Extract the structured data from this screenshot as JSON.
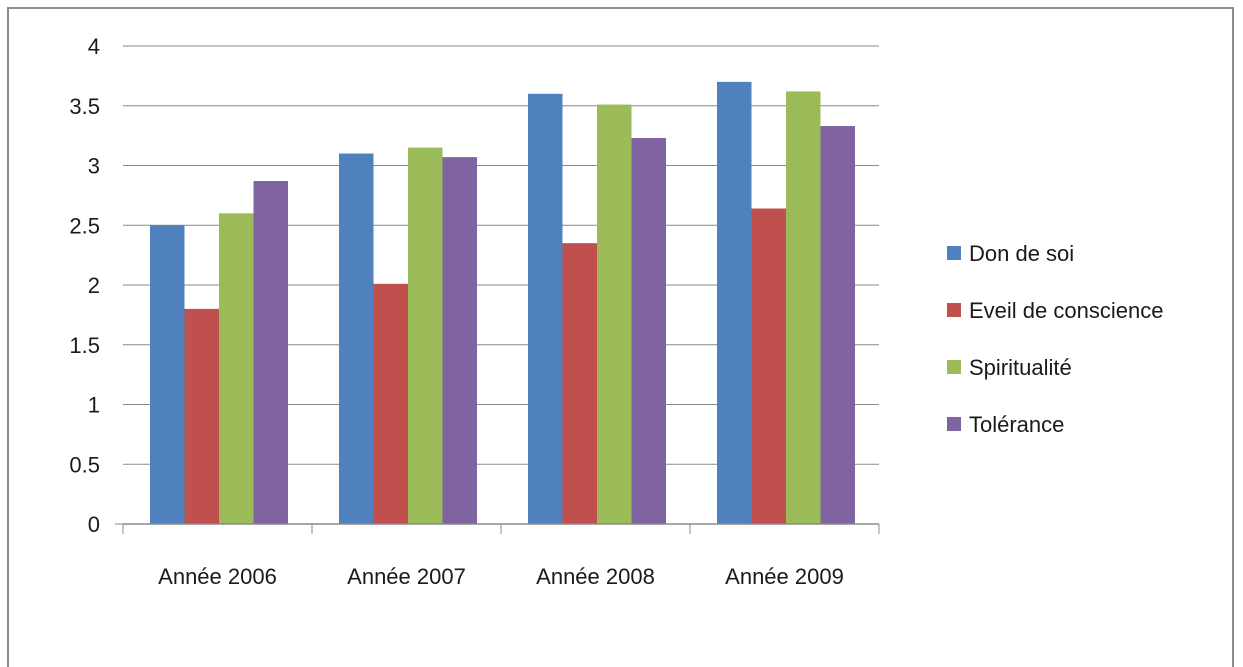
{
  "chart_data": {
    "type": "bar",
    "title": "",
    "xlabel": "",
    "ylabel": "",
    "categories": [
      "Année 2006",
      "Année 2007",
      "Année 2008",
      "Année 2009"
    ],
    "ylim": [
      0,
      4
    ],
    "yticks": [
      "0",
      "0.5",
      "1",
      "1.5",
      "2",
      "2.5",
      "3",
      "3.5",
      "4"
    ],
    "grid": true,
    "legend_position": "right",
    "series": [
      {
        "name": "Don de soi",
        "color": "#4f81bd",
        "values": [
          2.5,
          3.1,
          3.6,
          3.7
        ]
      },
      {
        "name": "Eveil de conscience",
        "color": "#c0504d",
        "values": [
          1.8,
          2.01,
          2.35,
          2.64
        ]
      },
      {
        "name": "Spiritualité",
        "color": "#9bbb59",
        "values": [
          2.6,
          3.15,
          3.51,
          3.62
        ]
      },
      {
        "name": "Tolérance",
        "color": "#8064a2",
        "values": [
          2.87,
          3.07,
          3.23,
          3.33
        ]
      }
    ]
  }
}
